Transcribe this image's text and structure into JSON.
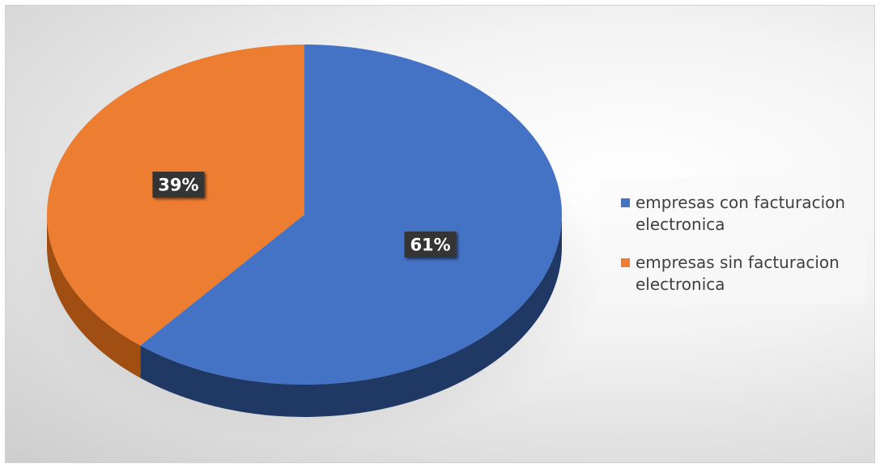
{
  "chart_data": {
    "type": "pie",
    "style": "3d",
    "title": "",
    "slices": [
      {
        "label": "empresas con facturacion electronica",
        "value": 61,
        "data_label": "61%",
        "color": "#4472C4",
        "side_color": "#1F3864"
      },
      {
        "label": "empresas sin facturacion electronica",
        "value": 39,
        "data_label": "39%",
        "color": "#ED7D31",
        "side_color": "#A14E12"
      }
    ],
    "legend_position": "right"
  }
}
